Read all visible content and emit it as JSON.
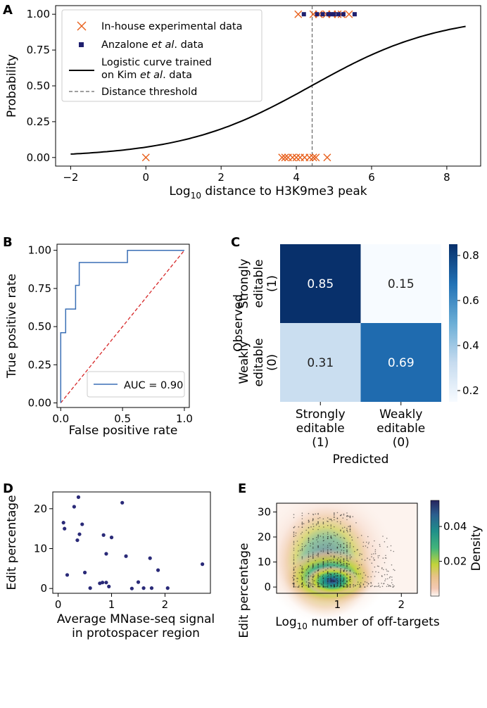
{
  "chart_data": [
    {
      "panel": "A",
      "type": "scatter",
      "xlabel": "Log10 distance to H3K9me3 peak",
      "ylabel": "Probability",
      "xlim": [
        -2.4,
        8.9
      ],
      "ylim": [
        -0.06,
        1.06
      ],
      "xticks": [
        -2,
        0,
        2,
        4,
        6,
        8
      ],
      "yticks": [
        0.0,
        0.25,
        0.5,
        0.75,
        1.0
      ],
      "ytick_labels": [
        "0.00",
        "0.25",
        "0.50",
        "0.75",
        "1.00"
      ],
      "xtick_labels": [
        "−2",
        "0",
        "2",
        "4",
        "6",
        "8"
      ],
      "legend": {
        "position": "upper-left",
        "entries": [
          "In-house experimental data",
          "Anzalone et al. data",
          "Logistic curve trained",
          "on Kim et al. data",
          "Distance threshold"
        ]
      },
      "logistic": {
        "x0": 4.4,
        "k": 0.58,
        "x_range": [
          -2,
          8.5
        ]
      },
      "threshold_x": 4.42,
      "series": [
        {
          "name": "In-house experimental data",
          "marker": "x",
          "color": "#e8601c",
          "points": [
            [
              0,
              0
            ],
            [
              3.62,
              0
            ],
            [
              3.7,
              0
            ],
            [
              3.78,
              0
            ],
            [
              3.9,
              0
            ],
            [
              4.0,
              0
            ],
            [
              4.1,
              0
            ],
            [
              4.22,
              0
            ],
            [
              4.35,
              0
            ],
            [
              4.45,
              0
            ],
            [
              4.52,
              0
            ],
            [
              4.82,
              0
            ],
            [
              4.05,
              1
            ],
            [
              4.45,
              1
            ],
            [
              4.6,
              1
            ],
            [
              4.8,
              1
            ],
            [
              4.95,
              1
            ],
            [
              5.1,
              1
            ],
            [
              5.2,
              1
            ],
            [
              5.4,
              1
            ]
          ]
        },
        {
          "name": "Anzalone et al. data",
          "marker": "square",
          "color": "#1f1f6e",
          "points": [
            [
              4.2,
              1
            ],
            [
              4.55,
              1
            ],
            [
              4.7,
              1
            ],
            [
              4.85,
              1
            ],
            [
              4.92,
              1
            ],
            [
              5.0,
              1
            ],
            [
              5.12,
              1
            ],
            [
              5.25,
              1
            ],
            [
              5.55,
              1
            ]
          ]
        }
      ]
    },
    {
      "panel": "B",
      "type": "line",
      "xlabel": "False positive rate",
      "ylabel": "True positive rate",
      "xlim": [
        -0.03,
        1.04
      ],
      "ylim": [
        -0.03,
        1.04
      ],
      "xticks": [
        0.0,
        0.5,
        1.0
      ],
      "xtick_labels": [
        "0.0",
        "0.5",
        "1.0"
      ],
      "yticks": [
        0.0,
        0.25,
        0.5,
        0.75,
        1.0
      ],
      "ytick_labels": [
        "0.00",
        "0.25",
        "0.50",
        "0.75",
        "1.00"
      ],
      "legend": {
        "position": "lower-right",
        "entries": [
          "AUC = 0.90"
        ]
      },
      "roc": [
        [
          0,
          0
        ],
        [
          0,
          0.46
        ],
        [
          0.04,
          0.46
        ],
        [
          0.04,
          0.615
        ],
        [
          0.12,
          0.615
        ],
        [
          0.12,
          0.77
        ],
        [
          0.15,
          0.77
        ],
        [
          0.15,
          0.92
        ],
        [
          0.54,
          0.92
        ],
        [
          0.54,
          1.0
        ],
        [
          1.0,
          1.0
        ]
      ]
    },
    {
      "panel": "C",
      "type": "heatmap",
      "xlabel": "Predicted",
      "ylabel": "Observed",
      "col_labels": [
        [
          "Strongly",
          "editable",
          "(1)"
        ],
        [
          "Weakly",
          "editable",
          "(0)"
        ]
      ],
      "row_labels": [
        [
          "Strongly",
          "editable",
          "(1)"
        ],
        [
          "Weakly",
          "editable",
          "(0)"
        ]
      ],
      "values": [
        [
          0.85,
          0.15
        ],
        [
          0.31,
          0.69
        ]
      ],
      "value_labels": [
        [
          "0.85",
          "0.15"
        ],
        [
          "0.31",
          "0.69"
        ]
      ],
      "colorbar": {
        "min": 0.15,
        "max": 0.85,
        "ticks": [
          0.2,
          0.4,
          0.6,
          0.8
        ],
        "tick_labels": [
          "0.2",
          "0.4",
          "0.6",
          "0.8"
        ]
      }
    },
    {
      "panel": "D",
      "type": "scatter",
      "xlabel": [
        "Average MNase-seq signal",
        "in protospacer region"
      ],
      "ylabel": "Edit percentage",
      "xlim": [
        -0.1,
        2.85
      ],
      "ylim": [
        -1.2,
        24.2
      ],
      "xticks": [
        0,
        1,
        2
      ],
      "xtick_labels": [
        "0",
        "1",
        "2"
      ],
      "yticks": [
        0,
        10,
        20
      ],
      "ytick_labels": [
        "0",
        "10",
        "20"
      ],
      "color": "#2a2a78",
      "points": [
        [
          0.1,
          16.5
        ],
        [
          0.12,
          15.0
        ],
        [
          0.17,
          3.4
        ],
        [
          0.3,
          20.5
        ],
        [
          0.36,
          12.1
        ],
        [
          0.38,
          22.9
        ],
        [
          0.4,
          13.6
        ],
        [
          0.45,
          16.1
        ],
        [
          0.5,
          4.0
        ],
        [
          0.6,
          0.1
        ],
        [
          0.78,
          1.3
        ],
        [
          0.83,
          1.5
        ],
        [
          0.85,
          13.4
        ],
        [
          0.9,
          8.7
        ],
        [
          0.9,
          1.5
        ],
        [
          0.95,
          0.5
        ],
        [
          1.0,
          12.8
        ],
        [
          1.2,
          21.5
        ],
        [
          1.27,
          8.1
        ],
        [
          1.38,
          0.0
        ],
        [
          1.5,
          1.6
        ],
        [
          1.6,
          0.1
        ],
        [
          1.72,
          7.6
        ],
        [
          1.75,
          0.1
        ],
        [
          1.87,
          4.6
        ],
        [
          2.05,
          0.1
        ],
        [
          2.7,
          6.1
        ]
      ]
    },
    {
      "panel": "E",
      "type": "scatter",
      "xlabel": "Log10 number of off-targets",
      "ylabel": "Edit percentage",
      "xlim": [
        0.05,
        2.25
      ],
      "ylim": [
        -2.5,
        33.5
      ],
      "xticks": [
        1,
        2
      ],
      "xtick_labels": [
        "1",
        "2"
      ],
      "yticks": [
        0,
        10,
        20,
        30
      ],
      "ytick_labels": [
        "0",
        "10",
        "20",
        "30"
      ],
      "density_peak": [
        0.92,
        2.5
      ],
      "colorbar": {
        "label": "Density",
        "min": 0.0,
        "max": 0.055,
        "ticks": [
          0.02,
          0.04
        ],
        "tick_labels": [
          "0.02",
          "0.04"
        ]
      }
    }
  ]
}
